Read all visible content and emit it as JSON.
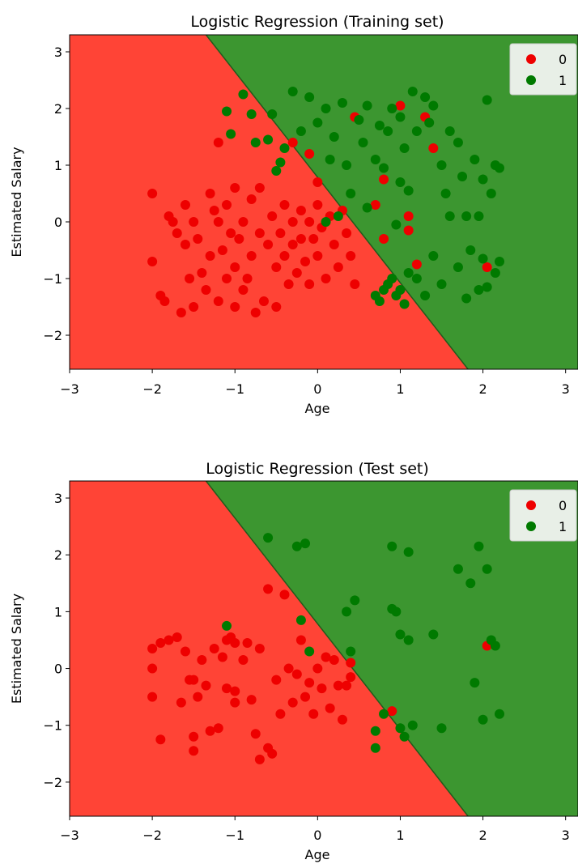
{
  "colors": {
    "region_0": "#ff4436",
    "region_1": "#3c9630",
    "class_0": "#ee0000",
    "class_1": "#007a00",
    "boundary": "#225a1c",
    "legend_bg": "#e8efe7"
  },
  "chart_data": [
    {
      "type": "scatter",
      "title": "Logistic Regression (Training set)",
      "xlabel": "Age",
      "ylabel": "Estimated Salary",
      "xlim": [
        -3,
        3.15
      ],
      "ylim": [
        -2.6,
        3.3
      ],
      "xticks": [
        -3,
        -2,
        -1,
        0,
        1,
        2,
        3
      ],
      "xtick_labels": [
        "−3",
        "−2",
        "−1",
        "0",
        "1",
        "2",
        "3"
      ],
      "yticks": [
        -2,
        -1,
        0,
        1,
        2,
        3
      ],
      "ytick_labels": [
        "−2",
        "−1",
        "0",
        "1",
        "2",
        "3"
      ],
      "legend_position": "top-right",
      "decision_boundary": [
        [
          -1.35,
          3.3
        ],
        [
          1.82,
          -2.6
        ]
      ],
      "regions": [
        {
          "label": "0",
          "side": "left"
        },
        {
          "label": "1",
          "side": "right"
        }
      ],
      "legend": [
        {
          "label": "0",
          "color_key": "class_0"
        },
        {
          "label": "1",
          "color_key": "class_1"
        }
      ],
      "series": [
        {
          "name": "0",
          "points": [
            [
              -2.0,
              0.5
            ],
            [
              -2.0,
              -0.7
            ],
            [
              -1.9,
              -1.3
            ],
            [
              -1.85,
              -1.4
            ],
            [
              -1.8,
              0.1
            ],
            [
              -1.75,
              0.0
            ],
            [
              -1.7,
              -0.2
            ],
            [
              -1.65,
              -1.6
            ],
            [
              -1.6,
              0.3
            ],
            [
              -1.6,
              -0.4
            ],
            [
              -1.55,
              -1.0
            ],
            [
              -1.5,
              -1.5
            ],
            [
              -1.5,
              0.0
            ],
            [
              -1.45,
              -0.3
            ],
            [
              -1.4,
              -0.9
            ],
            [
              -1.35,
              -1.2
            ],
            [
              -1.3,
              0.5
            ],
            [
              -1.3,
              -0.6
            ],
            [
              -1.25,
              0.2
            ],
            [
              -1.2,
              -1.4
            ],
            [
              -1.2,
              0.0
            ],
            [
              -1.15,
              -0.5
            ],
            [
              -1.1,
              -1.0
            ],
            [
              -1.1,
              0.3
            ],
            [
              -1.05,
              -0.2
            ],
            [
              -1.0,
              -1.5
            ],
            [
              -1.0,
              0.6
            ],
            [
              -1.0,
              -0.8
            ],
            [
              -0.95,
              -0.3
            ],
            [
              -0.9,
              0.0
            ],
            [
              -0.9,
              -1.2
            ],
            [
              -0.85,
              -1.0
            ],
            [
              -0.8,
              0.4
            ],
            [
              -0.8,
              -0.6
            ],
            [
              -0.75,
              -1.6
            ],
            [
              -0.7,
              -0.2
            ],
            [
              -0.7,
              0.6
            ],
            [
              -0.65,
              -1.4
            ],
            [
              -0.6,
              -0.4
            ],
            [
              -0.55,
              0.1
            ],
            [
              -0.5,
              -0.8
            ],
            [
              -0.5,
              -1.5
            ],
            [
              -0.45,
              -0.2
            ],
            [
              -0.4,
              0.3
            ],
            [
              -0.4,
              -0.6
            ],
            [
              -0.35,
              -1.1
            ],
            [
              -0.3,
              0.0
            ],
            [
              -0.3,
              -0.4
            ],
            [
              -0.25,
              -0.9
            ],
            [
              -0.2,
              0.2
            ],
            [
              -0.2,
              -0.3
            ],
            [
              -0.15,
              -0.7
            ],
            [
              -0.1,
              0.0
            ],
            [
              -0.1,
              -1.1
            ],
            [
              -0.05,
              -0.3
            ],
            [
              0.0,
              0.3
            ],
            [
              0.0,
              -0.6
            ],
            [
              0.05,
              -0.1
            ],
            [
              0.1,
              -1.0
            ],
            [
              0.15,
              0.1
            ],
            [
              0.2,
              -0.4
            ],
            [
              0.25,
              -0.8
            ],
            [
              0.3,
              0.2
            ],
            [
              0.35,
              -0.2
            ],
            [
              0.4,
              -0.6
            ],
            [
              0.45,
              -1.1
            ],
            [
              -1.2,
              1.4
            ],
            [
              -0.3,
              1.4
            ],
            [
              -0.1,
              1.2
            ],
            [
              0.0,
              0.7
            ],
            [
              0.45,
              1.85
            ],
            [
              0.7,
              0.3
            ],
            [
              0.8,
              0.75
            ],
            [
              0.8,
              -0.3
            ],
            [
              1.0,
              2.05
            ],
            [
              1.1,
              0.1
            ],
            [
              1.1,
              -0.15
            ],
            [
              1.2,
              -0.75
            ],
            [
              1.3,
              1.85
            ],
            [
              1.4,
              1.3
            ],
            [
              2.05,
              -0.8
            ]
          ]
        },
        {
          "name": "1",
          "points": [
            [
              -1.1,
              1.95
            ],
            [
              -1.05,
              1.55
            ],
            [
              -0.9,
              2.25
            ],
            [
              -0.8,
              1.9
            ],
            [
              -0.75,
              1.4
            ],
            [
              -0.6,
              1.45
            ],
            [
              -0.55,
              1.9
            ],
            [
              -0.5,
              0.9
            ],
            [
              -0.45,
              1.05
            ],
            [
              -0.4,
              1.3
            ],
            [
              -0.3,
              2.3
            ],
            [
              -0.2,
              1.6
            ],
            [
              -0.1,
              2.2
            ],
            [
              0.0,
              1.75
            ],
            [
              0.1,
              2.0
            ],
            [
              0.15,
              1.1
            ],
            [
              0.2,
              1.5
            ],
            [
              0.3,
              2.1
            ],
            [
              0.35,
              1.0
            ],
            [
              0.4,
              0.5
            ],
            [
              0.5,
              1.8
            ],
            [
              0.55,
              1.4
            ],
            [
              0.6,
              2.05
            ],
            [
              0.7,
              1.1
            ],
            [
              0.75,
              1.7
            ],
            [
              0.8,
              0.95
            ],
            [
              0.85,
              1.6
            ],
            [
              0.9,
              2.0
            ],
            [
              1.0,
              1.85
            ],
            [
              1.0,
              0.7
            ],
            [
              1.05,
              1.3
            ],
            [
              1.1,
              0.55
            ],
            [
              1.15,
              2.3
            ],
            [
              1.2,
              1.6
            ],
            [
              1.3,
              2.2
            ],
            [
              1.35,
              1.75
            ],
            [
              1.4,
              2.05
            ],
            [
              1.5,
              1.0
            ],
            [
              1.55,
              0.5
            ],
            [
              1.6,
              1.6
            ],
            [
              1.7,
              1.4
            ],
            [
              1.75,
              0.8
            ],
            [
              1.8,
              0.1
            ],
            [
              1.9,
              1.1
            ],
            [
              2.0,
              0.75
            ],
            [
              2.05,
              2.15
            ],
            [
              2.1,
              0.5
            ],
            [
              2.15,
              1.0
            ],
            [
              2.2,
              0.95
            ],
            [
              0.7,
              -1.3
            ],
            [
              0.75,
              -1.4
            ],
            [
              0.8,
              -1.2
            ],
            [
              0.85,
              -1.1
            ],
            [
              0.9,
              -1.0
            ],
            [
              0.95,
              -1.3
            ],
            [
              1.0,
              -1.2
            ],
            [
              1.05,
              -1.45
            ],
            [
              1.1,
              -0.9
            ],
            [
              1.2,
              -1.0
            ],
            [
              1.3,
              -1.3
            ],
            [
              1.4,
              -0.6
            ],
            [
              1.5,
              -1.1
            ],
            [
              1.6,
              0.1
            ],
            [
              1.7,
              -0.8
            ],
            [
              1.8,
              -1.35
            ],
            [
              1.85,
              -0.5
            ],
            [
              1.95,
              -1.2
            ],
            [
              2.0,
              -0.65
            ],
            [
              2.05,
              -1.15
            ],
            [
              2.15,
              -0.9
            ],
            [
              2.2,
              -0.7
            ],
            [
              1.95,
              0.1
            ],
            [
              0.25,
              0.1
            ],
            [
              0.1,
              0.0
            ],
            [
              0.6,
              0.25
            ],
            [
              0.95,
              -0.05
            ]
          ]
        }
      ]
    },
    {
      "type": "scatter",
      "title": "Logistic Regression (Test set)",
      "xlabel": "Age",
      "ylabel": "Estimated Salary",
      "xlim": [
        -3,
        3.15
      ],
      "ylim": [
        -2.6,
        3.3
      ],
      "xticks": [
        -3,
        -2,
        -1,
        0,
        1,
        2,
        3
      ],
      "xtick_labels": [
        "−3",
        "−2",
        "−1",
        "0",
        "1",
        "2",
        "3"
      ],
      "yticks": [
        -2,
        -1,
        0,
        1,
        2,
        3
      ],
      "ytick_labels": [
        "−2",
        "−1",
        "0",
        "1",
        "2",
        "3"
      ],
      "legend_position": "top-right",
      "decision_boundary": [
        [
          -1.35,
          3.3
        ],
        [
          1.82,
          -2.6
        ]
      ],
      "regions": [
        {
          "label": "0",
          "side": "left"
        },
        {
          "label": "1",
          "side": "right"
        }
      ],
      "legend": [
        {
          "label": "0",
          "color_key": "class_0"
        },
        {
          "label": "1",
          "color_key": "class_1"
        }
      ],
      "series": [
        {
          "name": "0",
          "points": [
            [
              -2.0,
              0.35
            ],
            [
              -2.0,
              -0.5
            ],
            [
              -2.0,
              0.0
            ],
            [
              -1.9,
              0.45
            ],
            [
              -1.9,
              -1.25
            ],
            [
              -1.8,
              0.5
            ],
            [
              -1.7,
              0.55
            ],
            [
              -1.65,
              -0.6
            ],
            [
              -1.6,
              0.3
            ],
            [
              -1.55,
              -0.2
            ],
            [
              -1.5,
              -0.2
            ],
            [
              -1.5,
              -1.2
            ],
            [
              -1.5,
              -1.45
            ],
            [
              -1.45,
              -0.5
            ],
            [
              -1.4,
              0.15
            ],
            [
              -1.35,
              -0.3
            ],
            [
              -1.3,
              -1.1
            ],
            [
              -1.25,
              0.35
            ],
            [
              -1.2,
              -1.05
            ],
            [
              -1.15,
              0.2
            ],
            [
              -1.1,
              0.5
            ],
            [
              -1.1,
              -0.35
            ],
            [
              -1.05,
              0.55
            ],
            [
              -1.0,
              0.45
            ],
            [
              -1.0,
              -0.4
            ],
            [
              -1.0,
              -0.6
            ],
            [
              -0.9,
              0.15
            ],
            [
              -0.85,
              0.45
            ],
            [
              -0.8,
              -0.55
            ],
            [
              -0.75,
              -1.15
            ],
            [
              -0.7,
              -1.6
            ],
            [
              -0.7,
              0.35
            ],
            [
              -0.6,
              1.4
            ],
            [
              -0.6,
              -1.4
            ],
            [
              -0.55,
              -1.5
            ],
            [
              -0.5,
              -0.2
            ],
            [
              -0.45,
              -0.8
            ],
            [
              -0.4,
              1.3
            ],
            [
              -0.35,
              0.0
            ],
            [
              -0.3,
              -0.6
            ],
            [
              -0.25,
              -0.1
            ],
            [
              -0.2,
              0.5
            ],
            [
              -0.15,
              -0.5
            ],
            [
              -0.1,
              -0.25
            ],
            [
              -0.05,
              -0.8
            ],
            [
              0.0,
              0.0
            ],
            [
              0.05,
              -0.35
            ],
            [
              0.1,
              0.2
            ],
            [
              0.15,
              -0.7
            ],
            [
              0.2,
              0.15
            ],
            [
              0.25,
              -0.3
            ],
            [
              0.3,
              -0.9
            ],
            [
              0.35,
              -0.3
            ],
            [
              0.4,
              0.1
            ],
            [
              0.4,
              -0.15
            ],
            [
              0.9,
              -0.75
            ],
            [
              2.05,
              0.4
            ]
          ]
        },
        {
          "name": "1",
          "points": [
            [
              -1.1,
              0.75
            ],
            [
              -0.6,
              2.3
            ],
            [
              -0.25,
              2.15
            ],
            [
              -0.2,
              0.85
            ],
            [
              -0.15,
              2.2
            ],
            [
              -0.1,
              0.3
            ],
            [
              0.35,
              1.0
            ],
            [
              0.4,
              0.3
            ],
            [
              0.45,
              1.2
            ],
            [
              0.7,
              -1.1
            ],
            [
              0.7,
              -1.4
            ],
            [
              0.8,
              -0.8
            ],
            [
              0.9,
              2.15
            ],
            [
              0.9,
              1.05
            ],
            [
              0.95,
              1.0
            ],
            [
              1.0,
              0.6
            ],
            [
              1.0,
              -1.05
            ],
            [
              1.05,
              -1.2
            ],
            [
              1.1,
              2.05
            ],
            [
              1.1,
              0.5
            ],
            [
              1.15,
              -1.0
            ],
            [
              1.4,
              0.6
            ],
            [
              1.5,
              -1.05
            ],
            [
              1.7,
              1.75
            ],
            [
              1.85,
              1.5
            ],
            [
              1.9,
              -0.25
            ],
            [
              1.95,
              2.15
            ],
            [
              2.0,
              -0.9
            ],
            [
              2.05,
              1.75
            ],
            [
              2.1,
              0.5
            ],
            [
              2.15,
              0.4
            ],
            [
              2.2,
              -0.8
            ]
          ]
        }
      ]
    }
  ]
}
